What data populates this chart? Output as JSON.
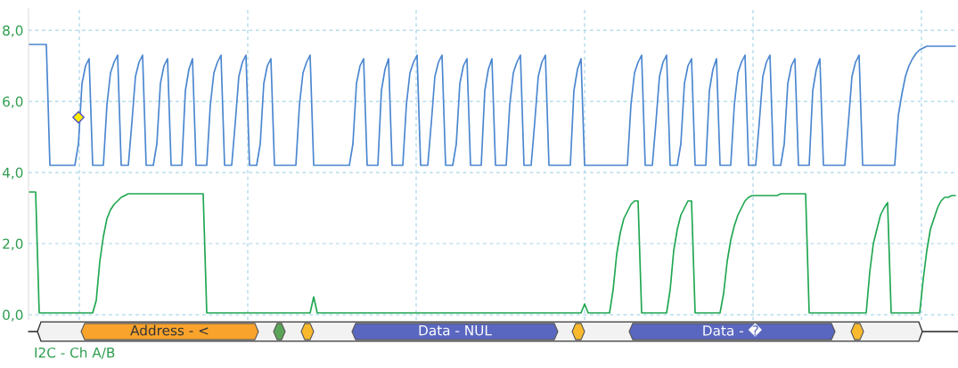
{
  "chart_data": {
    "type": "line",
    "tick_labels": "y",
    "grid": true,
    "legend": false,
    "marker": "none",
    "line_style": "solid",
    "ylim": [
      -0.15,
      8.6
    ],
    "yticks": [
      {
        "value": 0,
        "label": "0,0"
      },
      {
        "value": 2,
        "label": "2,0"
      },
      {
        "value": 4,
        "label": "4,0"
      },
      {
        "value": 6,
        "label": "6,0"
      },
      {
        "value": 8,
        "label": "8,0"
      }
    ],
    "categories": [
      null,
      null,
      null,
      null,
      null,
      null,
      null,
      null,
      null,
      null,
      null,
      null,
      null,
      null,
      null,
      null,
      null,
      null,
      null,
      null,
      null,
      null,
      null,
      null,
      null,
      null,
      null,
      null,
      null,
      null,
      null,
      null,
      null,
      null,
      null,
      null,
      null,
      null,
      null,
      null,
      null,
      null,
      null,
      null,
      null,
      null,
      null,
      null,
      null,
      null,
      null,
      null,
      null,
      null,
      null,
      null,
      null,
      null,
      null,
      null,
      null,
      null,
      null,
      null,
      null,
      null,
      null,
      null,
      null,
      null,
      null,
      null,
      null,
      null,
      null,
      null,
      null,
      null,
      null,
      null,
      null,
      null,
      null,
      null,
      null,
      null,
      null,
      null,
      null,
      null,
      null,
      null,
      null,
      null,
      null,
      null,
      null,
      null,
      null,
      null,
      null,
      null,
      null,
      null,
      null,
      null,
      null,
      null,
      null,
      null,
      null,
      null,
      null,
      null,
      null,
      null,
      null,
      null,
      null,
      null,
      null,
      null,
      null,
      null,
      null,
      null,
      null,
      null,
      null,
      null,
      null,
      null,
      null,
      null,
      null,
      null,
      null,
      null,
      null,
      null,
      null,
      null,
      null,
      null,
      null,
      null,
      null,
      null,
      null,
      null,
      null,
      null,
      null,
      null,
      null,
      null,
      null,
      null,
      null,
      null,
      null,
      null,
      null,
      null,
      null,
      null,
      null,
      null,
      null,
      null,
      null,
      null,
      null,
      null,
      null,
      null,
      null,
      null,
      null,
      null,
      null,
      null,
      null,
      null,
      null,
      null,
      null,
      null,
      null,
      null,
      null,
      null,
      null,
      null,
      null,
      null,
      null,
      null,
      null,
      null,
      null,
      null,
      null,
      null,
      null,
      null,
      null,
      null,
      null,
      null,
      null,
      null,
      null,
      null,
      null,
      null,
      null,
      null,
      null,
      null,
      null,
      null,
      null,
      null,
      null,
      null,
      null,
      null,
      null,
      null,
      null,
      null,
      null,
      null,
      null,
      null,
      null,
      null,
      null,
      null,
      null,
      null,
      null,
      null,
      null,
      null,
      null,
      null,
      null,
      null,
      null,
      null,
      null,
      null,
      null,
      null,
      null,
      null,
      null,
      null,
      null
    ],
    "series": [
      {
        "color": "#4a86d0",
        "values": [
          7.6,
          7.6,
          7.6,
          7.6,
          7.6,
          7.6,
          4.2,
          4.2,
          4.2,
          4.2,
          4.2,
          4.2,
          4.2,
          4.2,
          4.8,
          6.5,
          7.0,
          7.2,
          4.2,
          4.2,
          4.2,
          4.2,
          5.9,
          6.8,
          7.1,
          7.3,
          4.2,
          4.2,
          4.2,
          5.4,
          6.7,
          7.1,
          7.3,
          4.2,
          4.2,
          4.2,
          4.8,
          6.5,
          7.0,
          7.2,
          4.2,
          4.2,
          4.2,
          4.2,
          6.3,
          6.9,
          7.2,
          4.2,
          4.2,
          4.2,
          4.2,
          5.9,
          6.8,
          7.1,
          7.3,
          4.2,
          4.2,
          4.2,
          5.4,
          6.7,
          7.1,
          7.3,
          4.2,
          4.2,
          4.2,
          4.8,
          6.5,
          7.0,
          7.2,
          4.2,
          4.2,
          4.2,
          4.2,
          4.2,
          4.2,
          4.2,
          5.9,
          6.8,
          7.1,
          7.3,
          4.2,
          4.2,
          4.2,
          4.2,
          4.2,
          4.2,
          4.2,
          4.2,
          4.2,
          4.2,
          4.2,
          4.8,
          6.5,
          7.0,
          7.2,
          4.2,
          4.2,
          4.2,
          4.2,
          6.3,
          6.9,
          7.2,
          4.2,
          4.2,
          4.2,
          4.2,
          5.9,
          6.8,
          7.1,
          7.3,
          4.2,
          4.2,
          4.2,
          5.4,
          6.7,
          7.1,
          7.3,
          4.2,
          4.2,
          4.2,
          4.8,
          6.5,
          7.0,
          7.2,
          4.2,
          4.2,
          4.2,
          4.2,
          6.3,
          6.9,
          7.2,
          4.2,
          4.2,
          4.2,
          4.2,
          5.9,
          6.8,
          7.1,
          7.3,
          4.2,
          4.2,
          4.2,
          5.4,
          6.7,
          7.1,
          7.3,
          4.2,
          4.2,
          4.2,
          4.2,
          4.2,
          4.2,
          4.2,
          6.3,
          6.9,
          7.2,
          4.2,
          4.2,
          4.2,
          4.2,
          4.2,
          4.2,
          4.2,
          4.2,
          4.2,
          4.2,
          4.2,
          4.2,
          4.2,
          5.9,
          6.8,
          7.1,
          7.3,
          4.2,
          4.2,
          4.2,
          5.4,
          6.7,
          7.1,
          7.3,
          4.2,
          4.2,
          4.2,
          4.8,
          6.5,
          7.0,
          7.2,
          4.2,
          4.2,
          4.2,
          4.2,
          6.3,
          6.9,
          7.2,
          4.2,
          4.2,
          4.2,
          4.2,
          5.9,
          6.8,
          7.1,
          7.3,
          4.2,
          4.2,
          4.2,
          5.4,
          6.7,
          7.1,
          7.3,
          4.2,
          4.2,
          4.2,
          4.8,
          6.5,
          7.0,
          7.2,
          4.2,
          4.2,
          4.2,
          4.2,
          6.3,
          6.9,
          7.2,
          4.2,
          4.2,
          4.2,
          4.2,
          4.2,
          4.2,
          4.2,
          5.4,
          6.7,
          7.1,
          7.3,
          4.2,
          4.2,
          4.2,
          4.2,
          4.2,
          4.2,
          4.2,
          4.2,
          4.2,
          4.2,
          5.6,
          6.2,
          6.7,
          7.0,
          7.2,
          7.35,
          7.45,
          7.5,
          7.55,
          7.55,
          7.55,
          7.55,
          7.55,
          7.55,
          7.55,
          7.55,
          7.55
        ]
      },
      {
        "color": "#1fa750",
        "values": [
          3.45,
          3.45,
          3.45,
          0.05,
          0.05,
          0.05,
          0.05,
          0.05,
          0.05,
          0.05,
          0.05,
          0.05,
          0.05,
          0.05,
          0.05,
          0.05,
          0.05,
          0.05,
          0.05,
          0.4,
          1.5,
          2.2,
          2.7,
          2.95,
          3.1,
          3.2,
          3.3,
          3.35,
          3.4,
          3.4,
          3.4,
          3.4,
          3.4,
          3.4,
          3.4,
          3.4,
          3.4,
          3.4,
          3.4,
          3.4,
          3.4,
          3.4,
          3.4,
          3.4,
          3.4,
          3.4,
          3.4,
          3.4,
          3.4,
          3.4,
          0.05,
          0.05,
          0.05,
          0.05,
          0.05,
          0.05,
          0.05,
          0.05,
          0.05,
          0.05,
          0.05,
          0.05,
          0.05,
          0.05,
          0.05,
          0.05,
          0.05,
          0.05,
          0.05,
          0.05,
          0.05,
          0.05,
          0.05,
          0.05,
          0.05,
          0.05,
          0.05,
          0.05,
          0.05,
          0.05,
          0.5,
          0.05,
          0.05,
          0.05,
          0.05,
          0.05,
          0.05,
          0.05,
          0.05,
          0.05,
          0.05,
          0.05,
          0.05,
          0.05,
          0.05,
          0.05,
          0.05,
          0.05,
          0.05,
          0.05,
          0.05,
          0.05,
          0.05,
          0.05,
          0.05,
          0.05,
          0.05,
          0.05,
          0.05,
          0.05,
          0.05,
          0.05,
          0.05,
          0.05,
          0.05,
          0.05,
          0.05,
          0.05,
          0.05,
          0.05,
          0.05,
          0.05,
          0.05,
          0.05,
          0.05,
          0.05,
          0.05,
          0.05,
          0.05,
          0.05,
          0.05,
          0.05,
          0.05,
          0.05,
          0.05,
          0.05,
          0.05,
          0.05,
          0.05,
          0.05,
          0.05,
          0.05,
          0.05,
          0.05,
          0.05,
          0.05,
          0.05,
          0.05,
          0.05,
          0.05,
          0.05,
          0.05,
          0.05,
          0.05,
          0.05,
          0.05,
          0.3,
          0.05,
          0.05,
          0.05,
          0.05,
          0.05,
          0.05,
          0.05,
          0.7,
          1.7,
          2.3,
          2.7,
          2.9,
          3.1,
          3.2,
          3.2,
          0.05,
          0.05,
          0.05,
          0.05,
          0.05,
          0.05,
          0.05,
          0.05,
          0.7,
          1.8,
          2.4,
          2.8,
          3.0,
          3.2,
          3.2,
          0.05,
          0.05,
          0.05,
          0.05,
          0.05,
          0.05,
          0.05,
          0.05,
          0.6,
          1.5,
          2.1,
          2.5,
          2.8,
          3.0,
          3.2,
          3.3,
          3.35,
          3.35,
          3.35,
          3.35,
          3.35,
          3.35,
          3.35,
          3.35,
          3.4,
          3.4,
          3.4,
          3.4,
          3.4,
          3.4,
          3.4,
          3.4,
          0.05,
          0.05,
          0.05,
          0.05,
          0.05,
          0.05,
          0.05,
          0.05,
          0.05,
          0.05,
          0.05,
          0.05,
          0.05,
          0.05,
          0.05,
          0.05,
          0.05,
          1.2,
          2.0,
          2.4,
          2.8,
          3.0,
          3.15,
          0.05,
          0.05,
          0.05,
          0.05,
          0.05,
          0.05,
          0.05,
          0.05,
          0.05,
          1.0,
          1.8,
          2.4,
          2.7,
          3.0,
          3.2,
          3.3,
          3.3,
          3.35,
          3.35
        ]
      }
    ],
    "annotations": [
      "Address - <",
      "Data - NUL",
      "Data - �",
      "I2C - Ch A/B"
    ]
  }
}
